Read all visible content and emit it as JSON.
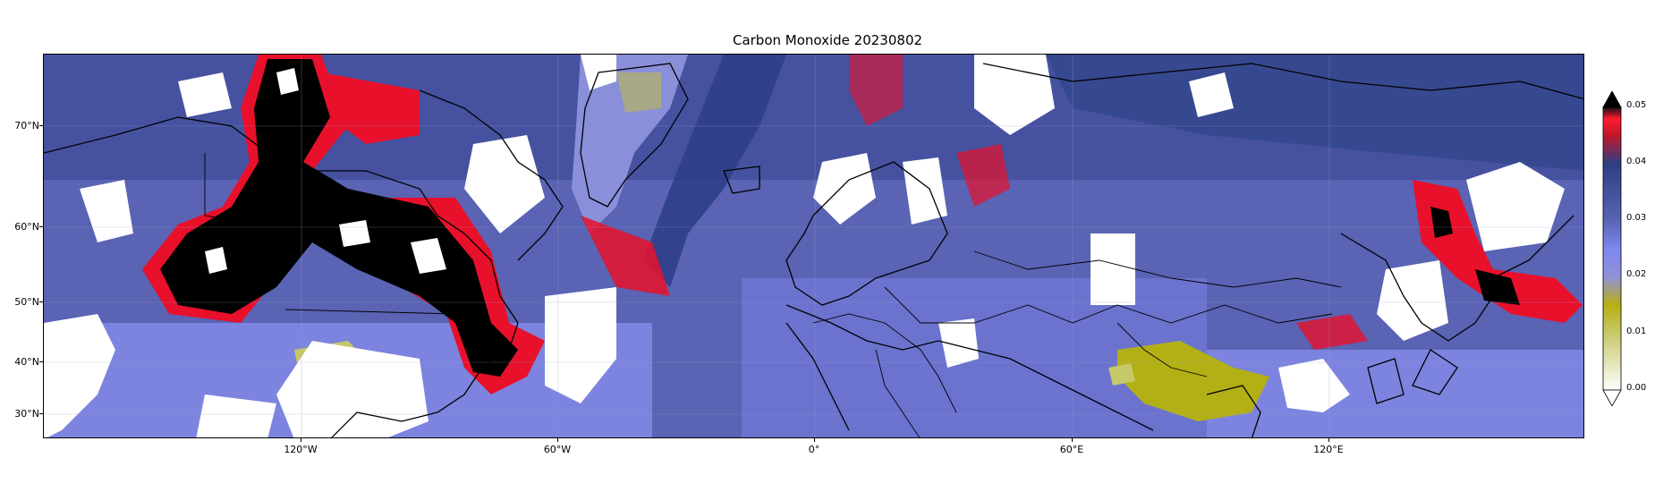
{
  "title": "Carbon Monoxide 20230802",
  "map": {
    "projection": "equirectangular",
    "lon_range": [
      -180,
      180
    ],
    "lat_range": [
      26,
      78
    ],
    "lat_ticks": [
      "70°N",
      "60°N",
      "50°N",
      "40°N",
      "30°N"
    ],
    "lon_ticks": [
      "120°W",
      "60°W",
      "0°",
      "60°E",
      "120°E"
    ],
    "gridlines": true,
    "no_data_color": "#ffffff",
    "background_color": "#5a63b4"
  },
  "colorbar": {
    "placement": "right",
    "ticks": [
      "0.05",
      "0.04",
      "0.03",
      "0.02",
      "0.01",
      "0.00"
    ],
    "range": [
      0.0,
      0.05
    ],
    "extend": "both",
    "stops": [
      {
        "value": 0.0,
        "color": "#ffffff"
      },
      {
        "value": 0.01,
        "color": "#c7c86a"
      },
      {
        "value": 0.015,
        "color": "#b7b010"
      },
      {
        "value": 0.02,
        "color": "#8f92d8"
      },
      {
        "value": 0.025,
        "color": "#7f86f0"
      },
      {
        "value": 0.03,
        "color": "#5a63b4"
      },
      {
        "value": 0.04,
        "color": "#2d3f82"
      },
      {
        "value": 0.045,
        "color": "#c0182a"
      },
      {
        "value": 0.048,
        "color": "#ff1a30"
      },
      {
        "value": 0.05,
        "color": "#111111"
      }
    ],
    "extend_max_color": "#000000",
    "extend_min_color": "#ffffff"
  },
  "features": {
    "smoke_plume_color": "#000000",
    "smoke_edge_color": "#e8102a",
    "elevated_color": "#2a3f86",
    "low_color": "#b3b016",
    "light_color": "#8188e6"
  }
}
